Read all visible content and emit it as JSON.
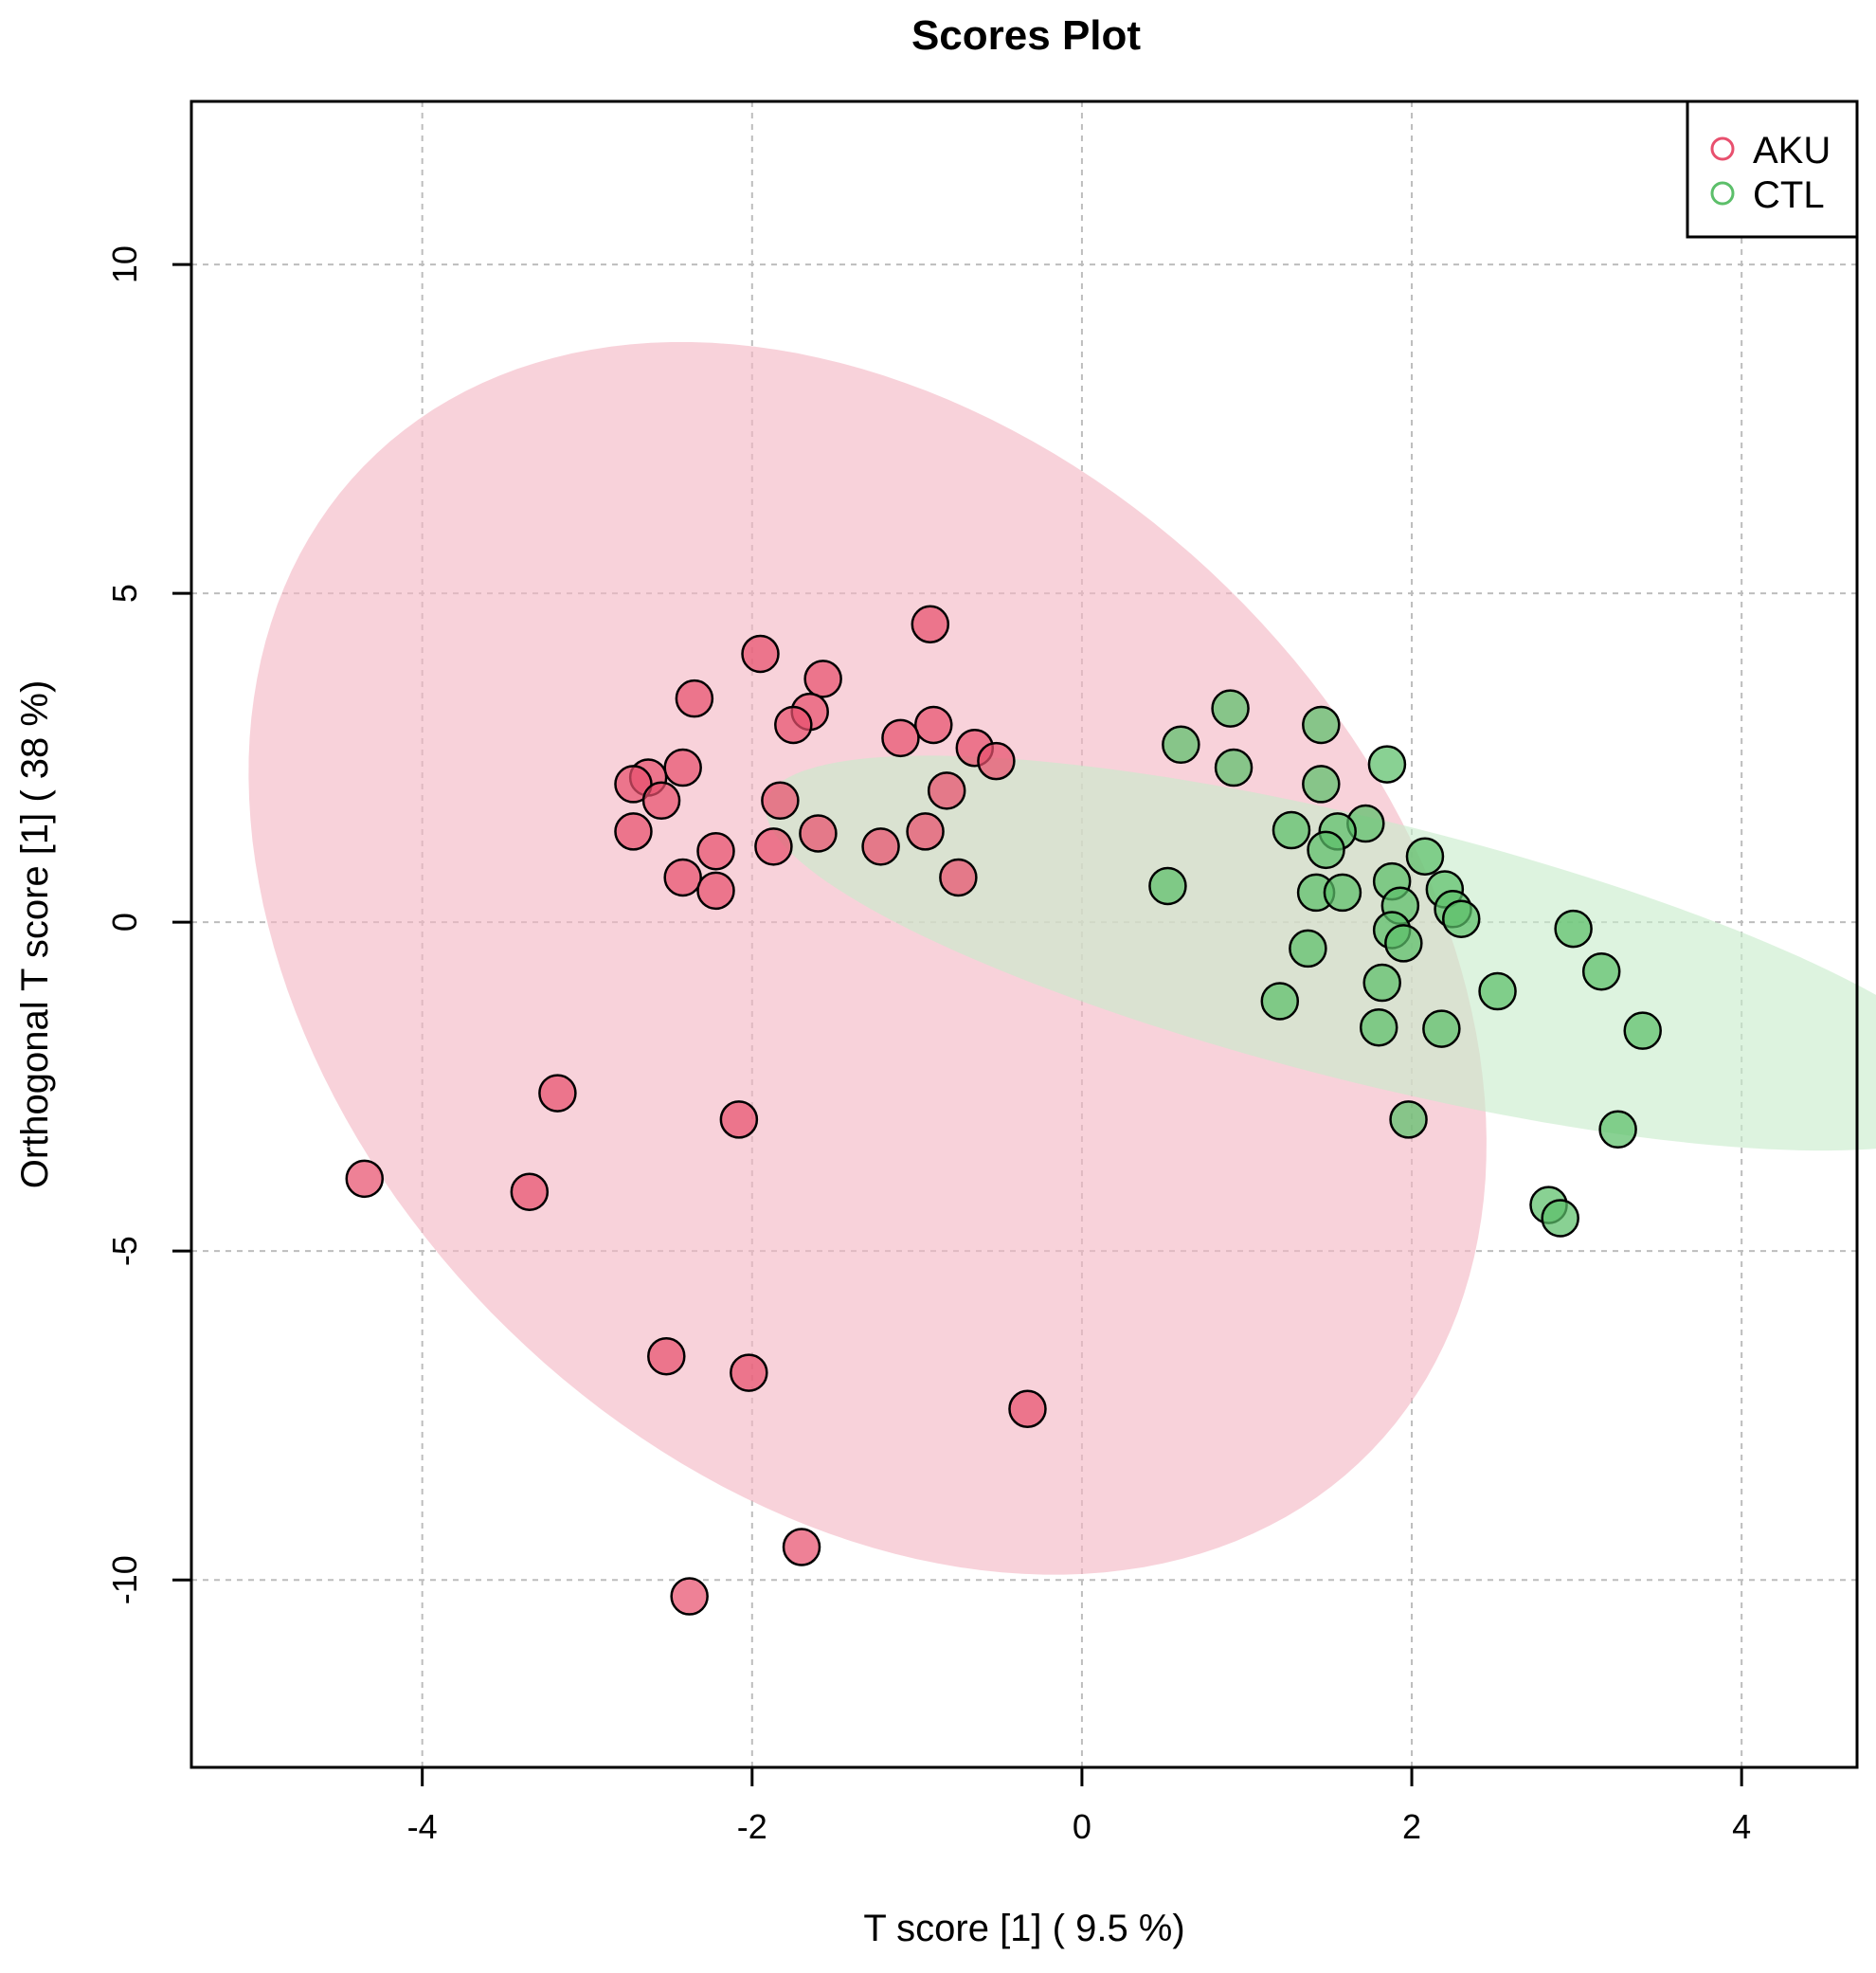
{
  "chart_data": {
    "type": "scatter",
    "title": "Scores Plot",
    "xlabel": "T score [1] ( 9.5 %)",
    "ylabel": "Orthogonal T score [1] ( 38 %)",
    "xlim": [
      -5.4,
      4.7
    ],
    "ylim": [
      -12.85,
      12.48
    ],
    "xticks": [
      -4,
      -2,
      0,
      2,
      4
    ],
    "yticks": [
      -10,
      -5,
      0,
      5,
      10
    ],
    "xtick_labels": [
      "-4",
      "-2",
      "0",
      "2",
      "4"
    ],
    "ytick_labels": [
      "-10",
      "-5",
      "0",
      "5",
      "10"
    ],
    "grid": true,
    "legend_position": "top-right",
    "series": [
      {
        "name": "AKU",
        "color": "#e8506e",
        "ellipse_color": "#f4b6c4",
        "ellipse": {
          "cx": -1.3,
          "cy": -0.55,
          "rx": 9.45,
          "ry": 3.55,
          "angle_deg": 98
        },
        "points": [
          [
            -0.92,
            4.53
          ],
          [
            -1.95,
            4.08
          ],
          [
            -1.57,
            3.7
          ],
          [
            -2.35,
            3.4
          ],
          [
            -1.65,
            3.2
          ],
          [
            -1.75,
            3.0
          ],
          [
            -0.9,
            3.0
          ],
          [
            -1.1,
            2.8
          ],
          [
            -0.65,
            2.65
          ],
          [
            -0.52,
            2.45
          ],
          [
            -2.42,
            2.35
          ],
          [
            -2.63,
            2.2
          ],
          [
            -2.72,
            2.1
          ],
          [
            -0.82,
            2.0
          ],
          [
            -2.55,
            1.85
          ],
          [
            -1.83,
            1.85
          ],
          [
            -2.72,
            1.38
          ],
          [
            -0.95,
            1.38
          ],
          [
            -1.6,
            1.35
          ],
          [
            -1.22,
            1.15
          ],
          [
            -1.87,
            1.15
          ],
          [
            -2.22,
            1.08
          ],
          [
            -2.42,
            0.68
          ],
          [
            -0.75,
            0.68
          ],
          [
            -2.22,
            0.48
          ],
          [
            -3.18,
            -2.6
          ],
          [
            -2.08,
            -3.0
          ],
          [
            -4.35,
            -3.9
          ],
          [
            -3.35,
            -4.1
          ],
          [
            -2.52,
            -6.6
          ],
          [
            -2.02,
            -6.85
          ],
          [
            -0.33,
            -7.4
          ],
          [
            -1.7,
            -9.5
          ],
          [
            -2.38,
            -10.25
          ]
        ]
      },
      {
        "name": "CTL",
        "color": "#5cbf6a",
        "ellipse_color": "#c8ebcb",
        "ellipse": {
          "cx": 1.78,
          "cy": -0.47,
          "rx": 4.45,
          "ry": 1.7,
          "angle_deg": -37
        },
        "points": [
          [
            0.9,
            3.25
          ],
          [
            1.45,
            3.0
          ],
          [
            0.6,
            2.7
          ],
          [
            0.92,
            2.35
          ],
          [
            1.85,
            2.4
          ],
          [
            1.45,
            2.1
          ],
          [
            1.27,
            1.4
          ],
          [
            1.72,
            1.5
          ],
          [
            1.55,
            1.38
          ],
          [
            1.48,
            1.1
          ],
          [
            2.08,
            1.0
          ],
          [
            0.52,
            0.55
          ],
          [
            1.42,
            0.45
          ],
          [
            1.58,
            0.45
          ],
          [
            1.88,
            0.62
          ],
          [
            2.2,
            0.5
          ],
          [
            1.93,
            0.25
          ],
          [
            2.25,
            0.2
          ],
          [
            2.3,
            0.05
          ],
          [
            1.88,
            -0.12
          ],
          [
            1.95,
            -0.32
          ],
          [
            2.98,
            -0.1
          ],
          [
            1.37,
            -0.4
          ],
          [
            3.15,
            -0.75
          ],
          [
            1.82,
            -0.92
          ],
          [
            2.52,
            -1.05
          ],
          [
            1.2,
            -1.2
          ],
          [
            1.8,
            -1.6
          ],
          [
            2.18,
            -1.62
          ],
          [
            3.4,
            -1.65
          ],
          [
            1.98,
            -3.0
          ],
          [
            3.25,
            -3.15
          ],
          [
            2.83,
            -4.3
          ],
          [
            2.9,
            -4.5
          ]
        ]
      }
    ]
  }
}
